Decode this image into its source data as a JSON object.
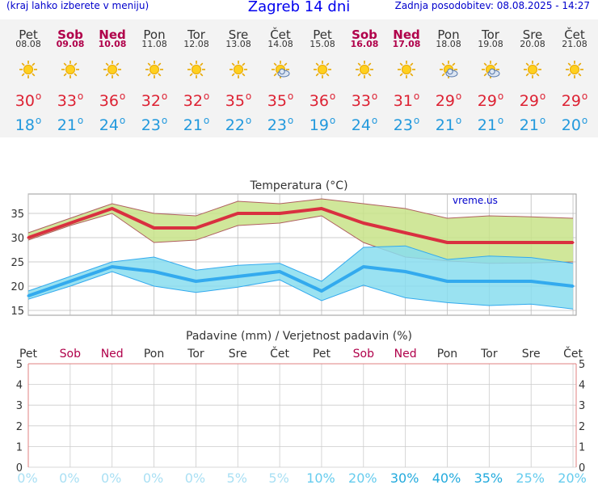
{
  "header": {
    "left_note": "(kraj lahko izberete v meniju)",
    "title": "Zagreb 14 dni",
    "updated": "Zadnja posodobitev: 08.08.2025 - 14:27"
  },
  "days": [
    {
      "name": "Pet",
      "date": "08.08",
      "weekend": false,
      "icon": "sun-icon",
      "max": "30",
      "min": "18"
    },
    {
      "name": "Sob",
      "date": "09.08",
      "weekend": true,
      "icon": "sun-icon",
      "max": "33",
      "min": "21"
    },
    {
      "name": "Ned",
      "date": "10.08",
      "weekend": true,
      "icon": "sun-icon",
      "max": "36",
      "min": "24"
    },
    {
      "name": "Pon",
      "date": "11.08",
      "weekend": false,
      "icon": "sun-icon",
      "max": "32",
      "min": "23"
    },
    {
      "name": "Tor",
      "date": "12.08",
      "weekend": false,
      "icon": "sun-icon",
      "max": "32",
      "min": "21"
    },
    {
      "name": "Sre",
      "date": "13.08",
      "weekend": false,
      "icon": "sun-icon",
      "max": "35",
      "min": "22"
    },
    {
      "name": "Čet",
      "date": "14.08",
      "weekend": false,
      "icon": "sun-cloud-icon",
      "max": "35",
      "min": "23"
    },
    {
      "name": "Pet",
      "date": "15.08",
      "weekend": false,
      "icon": "sun-icon",
      "max": "36",
      "min": "19"
    },
    {
      "name": "Sob",
      "date": "16.08",
      "weekend": true,
      "icon": "sun-icon",
      "max": "33",
      "min": "24"
    },
    {
      "name": "Ned",
      "date": "17.08",
      "weekend": true,
      "icon": "sun-icon",
      "max": "31",
      "min": "23"
    },
    {
      "name": "Pon",
      "date": "18.08",
      "weekend": false,
      "icon": "sun-cloud-icon",
      "max": "29",
      "min": "21"
    },
    {
      "name": "Tor",
      "date": "19.08",
      "weekend": false,
      "icon": "sun-cloud-icon",
      "max": "29",
      "min": "21"
    },
    {
      "name": "Sre",
      "date": "20.08",
      "weekend": false,
      "icon": "sun-icon",
      "max": "29",
      "min": "21"
    },
    {
      "name": "Čet",
      "date": "21.08",
      "weekend": false,
      "icon": "sun-icon",
      "max": "29",
      "min": "20"
    }
  ],
  "colors": {
    "max_line": "#d93040",
    "min_line": "#33aaee",
    "max_band": "#c8e388",
    "min_band": "#88ddee",
    "weekend": "#b0004a",
    "grid": "#bbbbbb",
    "precip_axis": "#e08080"
  },
  "chart_data": [
    {
      "type": "line",
      "title": "Temperatura (°C)",
      "watermark": "vreme.us",
      "ylim": [
        14,
        39
      ],
      "yticks": [
        15,
        20,
        25,
        30,
        35
      ],
      "series": [
        {
          "name": "max",
          "values": [
            30,
            33,
            36,
            32,
            32,
            35,
            35,
            36,
            33,
            31,
            29,
            29,
            29,
            29
          ],
          "upper": [
            31,
            34,
            37,
            35,
            34.5,
            37.5,
            37,
            38,
            37,
            36,
            34,
            34.5,
            34.3,
            34
          ],
          "lower": [
            29.5,
            32.5,
            35,
            29,
            29.5,
            32.5,
            33,
            34.5,
            29,
            26,
            25.2,
            24.7,
            24.8,
            25
          ]
        },
        {
          "name": "min",
          "values": [
            18,
            21,
            24,
            23,
            21,
            22,
            23,
            19,
            24,
            23,
            21,
            21,
            21,
            20
          ],
          "upper": [
            19,
            22,
            25,
            26,
            23.3,
            24.3,
            24.7,
            21,
            28,
            28.3,
            25.5,
            26.2,
            25.9,
            24.7
          ],
          "lower": [
            17.3,
            20,
            23,
            20,
            18.7,
            19.8,
            21.3,
            17,
            20.2,
            17.6,
            16.6,
            16,
            16.3,
            15.3
          ]
        }
      ]
    },
    {
      "type": "bar",
      "title": "Padavine (mm) / Verjetnost padavin (%)",
      "categories": [
        "Pet",
        "Sob",
        "Ned",
        "Pon",
        "Tor",
        "Sre",
        "Čet",
        "Pet",
        "Sob",
        "Ned",
        "Pon",
        "Tor",
        "Sre",
        "Čet"
      ],
      "values": [
        0,
        0,
        0,
        0,
        0,
        0,
        0,
        0,
        0,
        0,
        0,
        0,
        0,
        0
      ],
      "probability_labels": [
        "0%",
        "0%",
        "0%",
        "0%",
        "0%",
        "5%",
        "5%",
        "10%",
        "20%",
        "30%",
        "40%",
        "35%",
        "25%",
        "20%"
      ],
      "probability": [
        0,
        0,
        0,
        0,
        0,
        5,
        5,
        10,
        20,
        30,
        40,
        35,
        25,
        20
      ],
      "ylim": [
        0,
        5
      ],
      "yticks": [
        "0",
        "1",
        "2",
        "3",
        "4",
        "5"
      ]
    }
  ]
}
